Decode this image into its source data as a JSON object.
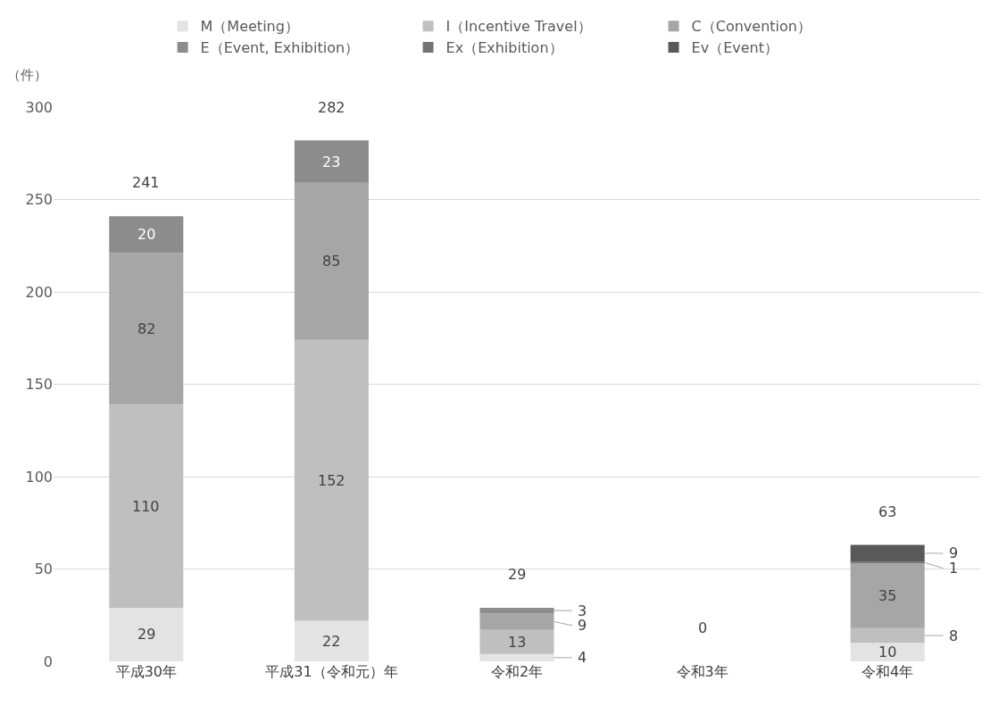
{
  "chart_data": {
    "type": "bar",
    "stacked": true,
    "ylabel": "（件）",
    "categories": [
      "平成30年",
      "平成31（令和元）年",
      "令和2年",
      "令和3年",
      "令和4年"
    ],
    "series": [
      {
        "name": "M（Meeting）",
        "color": "#e3e3e3",
        "values": [
          29,
          22,
          4,
          0,
          10
        ],
        "value_labels": [
          "29",
          "22",
          "4",
          null,
          "10"
        ]
      },
      {
        "name": "I（Incentive Travel）",
        "color": "#bfbfbf",
        "values": [
          110,
          152,
          13,
          0,
          8
        ],
        "value_labels": [
          "110",
          "152",
          "13",
          null,
          "8"
        ]
      },
      {
        "name": "C（Convention）",
        "color": "#a6a6a6",
        "values": [
          82,
          85,
          9,
          0,
          35
        ],
        "value_labels": [
          "82",
          "85",
          "9",
          null,
          "35"
        ]
      },
      {
        "name": "E（Event, Exhibition）",
        "color": "#8c8c8c",
        "values": [
          20,
          23,
          3,
          0,
          0
        ],
        "value_labels": [
          "20",
          "23",
          "3",
          null,
          null
        ]
      },
      {
        "name": "Ex（Exhibition）",
        "color": "#737373",
        "values": [
          0,
          0,
          0,
          0,
          1
        ],
        "value_labels": [
          null,
          null,
          null,
          null,
          "1"
        ]
      },
      {
        "name": "Ev（Event）",
        "color": "#595959",
        "values": [
          0,
          0,
          0,
          0,
          9
        ],
        "value_labels": [
          null,
          null,
          null,
          null,
          "9"
        ]
      }
    ],
    "totals": [
      "241",
      "282",
      "29",
      "0",
      "63"
    ],
    "ylim": [
      0,
      300
    ],
    "yticks": [
      0,
      50,
      100,
      150,
      200,
      250,
      300
    ],
    "grid": "y",
    "legend": "top"
  }
}
